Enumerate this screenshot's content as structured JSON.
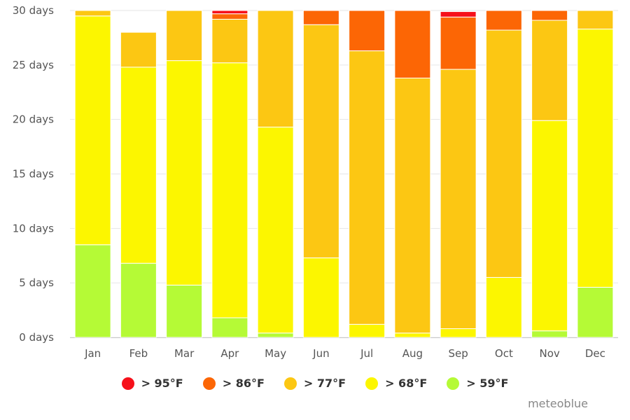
{
  "chart_data": {
    "type": "bar",
    "stacked": true,
    "categories": [
      "Jan",
      "Feb",
      "Mar",
      "Apr",
      "May",
      "Jun",
      "Jul",
      "Aug",
      "Sep",
      "Oct",
      "Nov",
      "Dec"
    ],
    "y_tick_labels": [
      "0 days",
      "5 days",
      "10 days",
      "15 days",
      "20 days",
      "25 days",
      "30 days"
    ],
    "ylim": [
      0,
      30
    ],
    "y_tick_values": [
      0,
      5,
      10,
      15,
      20,
      25,
      30
    ],
    "grid": true,
    "legend_position": "bottom",
    "series": [
      {
        "name": "> 59°F",
        "color": "#b5fa36",
        "values": [
          8.5,
          6.8,
          4.8,
          1.8,
          0.4,
          0,
          0,
          0,
          0,
          0,
          0.6,
          4.6
        ]
      },
      {
        "name": "> 68°F",
        "color": "#fcf600",
        "values": [
          21.0,
          18.0,
          20.6,
          23.4,
          18.9,
          7.3,
          1.2,
          0.4,
          0.8,
          5.5,
          19.3,
          23.7
        ]
      },
      {
        "name": "> 77°F",
        "color": "#fcc713",
        "values": [
          0.5,
          3.2,
          4.6,
          4.0,
          10.7,
          21.4,
          25.1,
          23.4,
          23.8,
          22.7,
          9.2,
          1.7
        ]
      },
      {
        "name": "> 86°F",
        "color": "#fc6605",
        "values": [
          0,
          0,
          0,
          0.5,
          0,
          1.3,
          3.7,
          6.2,
          4.8,
          1.8,
          0.9,
          0
        ]
      },
      {
        "name": "> 95°F",
        "color": "#f6101a",
        "values": [
          0,
          0,
          0,
          0.3,
          0,
          0,
          0,
          0,
          0.5,
          0,
          0,
          0
        ]
      }
    ],
    "legend_order": [
      4,
      3,
      2,
      1,
      0
    ]
  },
  "branding": {
    "credit": "meteoblue"
  }
}
